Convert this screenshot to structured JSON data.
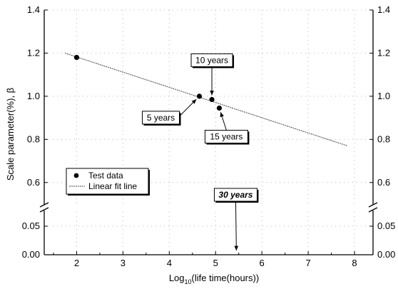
{
  "chart_data": {
    "type": "scatter",
    "xlabel_main": "Log",
    "xlabel_sub": "10",
    "xlabel_rest": "(life time(hours))",
    "ylabel": "Scale parameter(%), β",
    "xlim": [
      1.3,
      8.4
    ],
    "x_ticks": [
      "2",
      "3",
      "4",
      "5",
      "6",
      "7",
      "8"
    ],
    "x_tick_values": [
      2,
      3,
      4,
      5,
      6,
      7,
      8
    ],
    "y_upper_range": [
      0.5,
      1.4
    ],
    "y_upper_ticks": [
      "0.6",
      "0.8",
      "1.0",
      "1.2",
      "1.4"
    ],
    "y_upper_tick_values": [
      0.6,
      0.8,
      1.0,
      1.2,
      1.4
    ],
    "y_lower_range": [
      0.0,
      0.075
    ],
    "y_lower_ticks": [
      "0.00",
      "0.05"
    ],
    "y_lower_tick_values": [
      0.0,
      0.05
    ],
    "axis_break": true,
    "grid": "dotted",
    "series": [
      {
        "name": "Test data",
        "kind": "points",
        "x": [
          2.0,
          4.65,
          4.92,
          5.08
        ],
        "y": [
          1.18,
          1.0,
          0.985,
          0.945
        ]
      },
      {
        "name": "Linear fit line",
        "kind": "line",
        "x": [
          1.75,
          7.85
        ],
        "y": [
          1.2,
          0.77
        ]
      }
    ],
    "annotations": [
      {
        "text": "5 years",
        "point_x": 4.65,
        "point_y": 1.0,
        "bold": false
      },
      {
        "text": "10 years",
        "point_x": 4.92,
        "point_y": 0.985,
        "bold": false
      },
      {
        "text": "15 years",
        "point_x": 5.08,
        "point_y": 0.945,
        "bold": false
      },
      {
        "text": "30 years",
        "point_x": 5.45,
        "point_y": 0.0,
        "bold": true
      }
    ],
    "legend_position": "lower-left",
    "colors": {
      "points": "#000000",
      "fit_line": "#444444",
      "grid": "#b8b8b8"
    }
  }
}
